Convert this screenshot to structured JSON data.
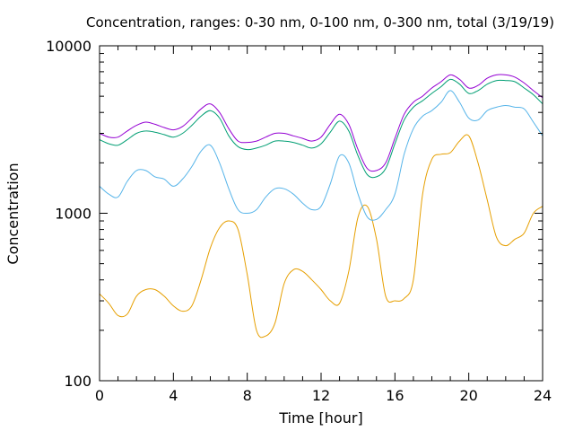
{
  "chart_data": {
    "type": "line",
    "title": "Concentration, ranges: 0-30 nm, 0-100 nm, 0-300 nm, total (3/19/19)",
    "xlabel": "Time [hour]",
    "ylabel": "Concentration",
    "xlim": [
      0,
      24
    ],
    "ylim": [
      100,
      10000
    ],
    "yscale": "log",
    "grid": false,
    "legend": "none",
    "x_ticks": [
      "0",
      "4",
      "8",
      "12",
      "16",
      "20",
      "24"
    ],
    "y_ticks": [
      "100",
      "1000",
      "10000"
    ],
    "x": [
      0,
      0.5,
      1,
      1.5,
      2,
      2.5,
      3,
      3.5,
      4,
      4.5,
      5,
      5.5,
      6,
      6.5,
      7,
      7.5,
      8,
      8.5,
      9,
      9.5,
      10,
      10.5,
      11,
      11.5,
      12,
      12.5,
      13,
      13.5,
      14,
      14.5,
      15,
      15.5,
      16,
      16.5,
      17,
      17.5,
      18,
      18.5,
      19,
      19.5,
      20,
      20.5,
      21,
      21.5,
      22,
      22.5,
      23,
      23.5,
      24
    ],
    "series": [
      {
        "color": "#e69f00",
        "values": [
          330,
          290,
          245,
          250,
          320,
          350,
          350,
          320,
          280,
          260,
          280,
          400,
          620,
          820,
          900,
          800,
          430,
          200,
          185,
          220,
          380,
          460,
          450,
          400,
          350,
          300,
          290,
          450,
          950,
          1100,
          700,
          320,
          300,
          310,
          400,
          1300,
          2100,
          2250,
          2300,
          2700,
          2900,
          2000,
          1200,
          720,
          640,
          700,
          760,
          1000,
          1100
        ]
      },
      {
        "color": "#56b4e9",
        "values": [
          1450,
          1300,
          1250,
          1550,
          1800,
          1800,
          1650,
          1600,
          1450,
          1600,
          1900,
          2350,
          2550,
          2000,
          1400,
          1050,
          1000,
          1050,
          1250,
          1400,
          1400,
          1300,
          1150,
          1050,
          1100,
          1500,
          2200,
          2000,
          1300,
          950,
          920,
          1050,
          1300,
          2250,
          3200,
          3800,
          4100,
          4600,
          5400,
          4600,
          3700,
          3600,
          4100,
          4300,
          4400,
          4300,
          4200,
          3500,
          2900
        ]
      },
      {
        "color": "#009e73",
        "values": [
          2750,
          2600,
          2550,
          2750,
          3000,
          3100,
          3050,
          2950,
          2850,
          3000,
          3350,
          3800,
          4100,
          3700,
          2900,
          2500,
          2400,
          2450,
          2550,
          2700,
          2700,
          2650,
          2550,
          2450,
          2600,
          3050,
          3550,
          3100,
          2200,
          1700,
          1650,
          1850,
          2600,
          3600,
          4300,
          4700,
          5200,
          5700,
          6300,
          5900,
          5200,
          5400,
          5900,
          6200,
          6200,
          6100,
          5600,
          5100,
          4500
        ]
      },
      {
        "color": "#9400d3",
        "values": [
          3000,
          2850,
          2850,
          3100,
          3350,
          3500,
          3400,
          3250,
          3150,
          3300,
          3700,
          4200,
          4500,
          4000,
          3200,
          2700,
          2650,
          2700,
          2850,
          3000,
          3000,
          2900,
          2800,
          2700,
          2850,
          3400,
          3900,
          3400,
          2400,
          1850,
          1800,
          2000,
          2800,
          3900,
          4600,
          5000,
          5600,
          6100,
          6700,
          6300,
          5600,
          5800,
          6400,
          6700,
          6700,
          6500,
          6000,
          5400,
          4900
        ]
      }
    ]
  }
}
